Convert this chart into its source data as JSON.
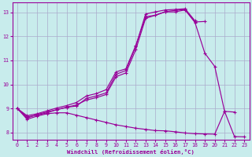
{
  "xlabel": "Windchill (Refroidissement éolien,°C)",
  "bg_color": "#c8ecec",
  "line_color": "#990099",
  "grid_color": "#aaaacc",
  "xlim": [
    -0.5,
    23.5
  ],
  "ylim": [
    7.7,
    13.4
  ],
  "xticks": [
    0,
    1,
    2,
    3,
    4,
    5,
    6,
    7,
    8,
    9,
    10,
    11,
    12,
    13,
    14,
    15,
    16,
    17,
    18,
    19,
    20,
    21,
    22,
    23
  ],
  "yticks": [
    8,
    9,
    10,
    11,
    12,
    13
  ],
  "curve1_x": [
    0,
    1,
    2,
    3,
    4,
    5,
    6,
    7,
    8,
    9,
    10,
    11,
    12,
    13,
    14,
    15,
    16,
    17,
    18
  ],
  "curve1_y": [
    9.0,
    8.6,
    8.75,
    8.85,
    8.95,
    9.05,
    9.1,
    9.42,
    9.52,
    9.65,
    10.42,
    10.58,
    11.58,
    12.93,
    13.02,
    13.1,
    13.12,
    13.15,
    12.65
  ],
  "curve2_x": [
    0,
    1,
    2,
    3,
    4,
    5,
    6,
    7,
    8,
    9,
    10,
    11,
    12,
    13,
    14,
    15,
    16,
    17,
    18,
    19
  ],
  "curve2_y": [
    9.0,
    8.65,
    8.72,
    8.82,
    8.95,
    9.05,
    9.15,
    9.35,
    9.45,
    9.58,
    10.32,
    10.48,
    11.44,
    12.75,
    12.88,
    13.03,
    13.08,
    13.12,
    12.6,
    12.62
  ],
  "curve3_x": [
    0,
    1,
    2,
    3,
    4,
    5,
    6,
    7,
    8,
    9,
    10,
    11,
    12,
    13,
    14,
    15,
    16,
    17,
    18,
    19,
    20,
    21,
    22
  ],
  "curve3_y": [
    9.0,
    8.7,
    8.78,
    8.9,
    9.02,
    9.12,
    9.25,
    9.52,
    9.62,
    9.78,
    10.52,
    10.65,
    11.62,
    12.82,
    12.88,
    13.02,
    13.02,
    13.1,
    12.58,
    11.3,
    10.75,
    8.88,
    8.85
  ],
  "curve4_x": [
    0,
    1,
    2,
    3,
    4,
    5,
    6,
    7,
    8,
    9,
    10,
    11,
    12,
    13,
    14,
    15,
    16,
    17,
    18,
    19,
    20,
    21,
    22,
    23
  ],
  "curve4_y": [
    9.0,
    8.55,
    8.68,
    8.78,
    8.82,
    8.82,
    8.72,
    8.62,
    8.52,
    8.42,
    8.32,
    8.25,
    8.18,
    8.13,
    8.08,
    8.07,
    8.03,
    7.98,
    7.95,
    7.94,
    7.93,
    8.88,
    7.83,
    7.82
  ]
}
